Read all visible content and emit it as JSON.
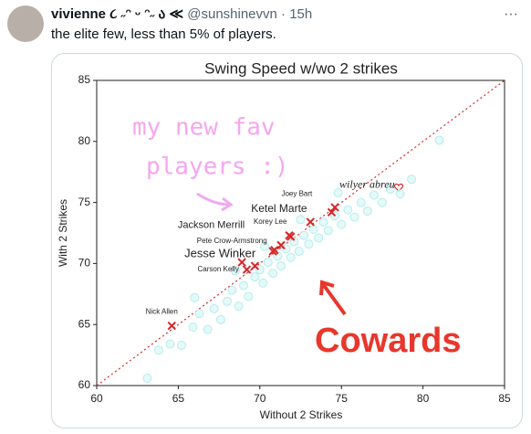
{
  "tweet": {
    "name": "vivienne ૮ ˶ᵔ ᵕ ᵔ˶ ა ≪",
    "handle": "@sunshinevvn",
    "time": "15h",
    "text": "the elite few, less than 5% of players."
  },
  "chart_data": {
    "type": "scatter",
    "title": "Swing Speed w/wo 2 strikes",
    "xlabel": "Without 2 Strikes",
    "ylabel": "With 2 Strikes",
    "xlim": [
      60,
      85
    ],
    "ylim": [
      60,
      85
    ],
    "xticks": [
      60,
      65,
      70,
      75,
      80,
      85
    ],
    "yticks": [
      60,
      65,
      70,
      75,
      80,
      85
    ],
    "diagonal": true,
    "annotations": [
      "my new fav",
      "players :)",
      "Cowards"
    ],
    "series": [
      {
        "marker": "circle",
        "color": "#d8f6f6",
        "x": [
          63.1,
          63.8,
          64.5,
          65.2,
          65.9,
          66.3,
          66.8,
          67.2,
          67.6,
          68.0,
          68.3,
          68.7,
          69.0,
          69.3,
          69.7,
          70.0,
          70.2,
          70.5,
          70.8,
          71.1,
          71.3,
          71.6,
          71.9,
          72.1,
          72.4,
          72.7,
          73.0,
          73.3,
          73.6,
          73.9,
          74.2,
          74.6,
          75.0,
          75.4,
          75.8,
          76.2,
          76.6,
          77.0,
          77.5,
          78.0,
          78.6,
          79.3,
          81.0,
          66.0,
          68.5,
          70.3,
          72.5,
          74.8
        ],
        "y": [
          60.6,
          62.9,
          63.4,
          63.3,
          64.8,
          65.9,
          64.6,
          66.3,
          65.4,
          66.9,
          67.8,
          66.5,
          68.2,
          67.3,
          68.9,
          69.5,
          68.4,
          70.1,
          69.2,
          70.6,
          69.8,
          71.2,
          70.5,
          71.8,
          71.0,
          72.3,
          71.6,
          72.8,
          72.1,
          73.4,
          72.7,
          73.9,
          73.2,
          74.4,
          73.8,
          75.0,
          74.3,
          75.6,
          75.0,
          76.1,
          75.7,
          76.9,
          80.1,
          67.2,
          69.4,
          71.4,
          73.6,
          75.8
        ]
      },
      {
        "marker": "x",
        "color": "#d62728",
        "x": [
          64.6,
          69.2,
          68.9,
          71.9,
          70.9,
          71.8,
          73.1,
          74.4,
          74.6,
          69.7,
          70.8,
          71.3
        ],
        "y": [
          64.9,
          69.5,
          70.1,
          72.2,
          71.1,
          72.3,
          73.4,
          74.2,
          74.6,
          69.8,
          71.0,
          71.5
        ],
        "labels": [
          "Nick Allen",
          "Carson Kelly",
          "Jesse Winker",
          "Pete Crow-Armstrong",
          "Jackson Merrill",
          "Korey Lee",
          "Ketel Marte",
          "Joey Bart",
          "wilyer abreu",
          null,
          null,
          null
        ]
      }
    ]
  }
}
